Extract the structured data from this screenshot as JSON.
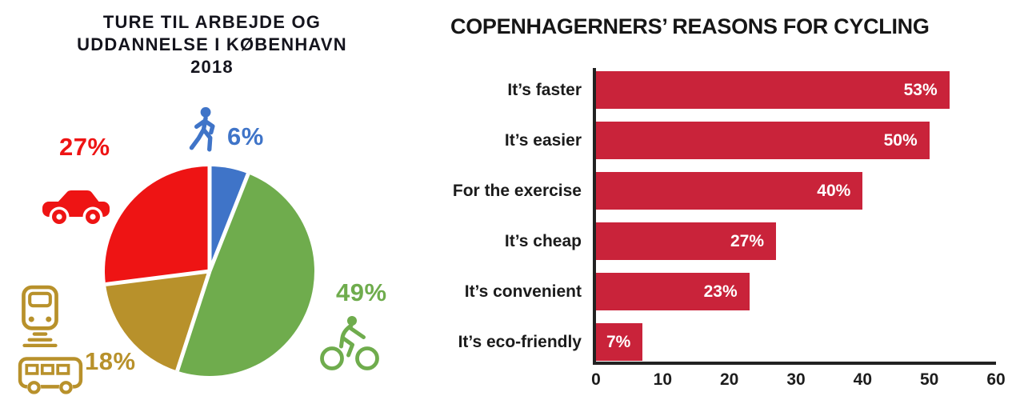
{
  "colors": {
    "pie_walking_blue": "#3F74C8",
    "pie_cycling_green": "#6FAC4D",
    "pie_transit_gold": "#B8912B",
    "pie_car_red": "#EE1414",
    "bar_red": "#C9233A",
    "axis_black": "#222222",
    "title_dark": "#14141d"
  },
  "chart_data": [
    {
      "type": "pie",
      "title": "TURE TIL ARBEJDE OG UDDANNELSE I KØBENHAVN 2018",
      "title_lines": "TURE TIL ARBEJDE OG\nUDDANNELSE I KØBENHAVN\n2018",
      "unit": "%",
      "start_angle": "top",
      "direction": "clockwise",
      "slices": [
        {
          "name": "walking",
          "value": 6,
          "label": "6%",
          "color": "#3F74C8",
          "icon": "pedestrian-icon"
        },
        {
          "name": "cycling",
          "value": 49,
          "label": "49%",
          "color": "#6FAC4D",
          "icon": "cyclist-icon"
        },
        {
          "name": "public-transport",
          "value": 18,
          "label": "18%",
          "color": "#B8912B",
          "icon": "train-icon bus-icon"
        },
        {
          "name": "car",
          "value": 27,
          "label": "27%",
          "color": "#EE1414",
          "icon": "car-icon"
        }
      ]
    },
    {
      "type": "bar",
      "orientation": "horizontal",
      "title": "COPENHAGERNERS’ REASONS FOR CYCLING",
      "categories": [
        "It’s faster",
        "It’s easier",
        "For the exercise",
        "It’s cheap",
        "It’s convenient",
        "It’s eco-friendly"
      ],
      "values": [
        53,
        50,
        40,
        27,
        23,
        7
      ],
      "value_labels": [
        "53%",
        "50%",
        "40%",
        "27%",
        "23%",
        "7%"
      ],
      "bar_color": "#C9233A",
      "value_label_position": "inside-end",
      "xlim": [
        0,
        60
      ],
      "x_ticks": [
        0,
        10,
        20,
        30,
        40,
        50,
        60
      ],
      "grid": false,
      "legend": false
    }
  ]
}
